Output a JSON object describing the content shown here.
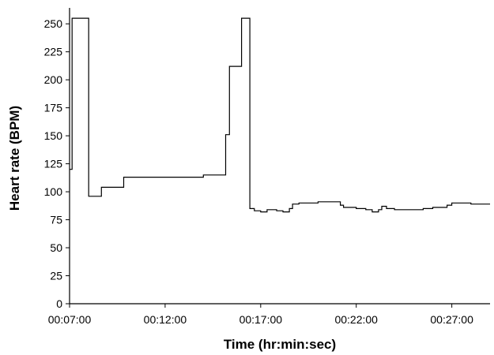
{
  "chart_data": {
    "type": "line",
    "title": "",
    "xlabel": "Time (hr:min:sec)",
    "ylabel": "Heart rate (BPM)",
    "x_ticks": [
      "00:07:00",
      "00:12:00",
      "00:17:00",
      "00:22:00",
      "00:27:00"
    ],
    "y_ticks": [
      0,
      25,
      50,
      75,
      100,
      125,
      150,
      175,
      200,
      225,
      250
    ],
    "xlim": [
      "00:07:00",
      "00:29:00"
    ],
    "ylim": [
      0,
      260
    ],
    "grid": false,
    "line_style": "step",
    "series": [
      {
        "color": "#000000",
        "points": [
          [
            "00:07:00",
            120
          ],
          [
            "00:07:08",
            255
          ],
          [
            "00:08:00",
            96
          ],
          [
            "00:08:40",
            104
          ],
          [
            "00:09:50",
            113
          ],
          [
            "00:14:00",
            115
          ],
          [
            "00:15:10",
            151
          ],
          [
            "00:15:22",
            212
          ],
          [
            "00:16:00",
            255
          ],
          [
            "00:16:26",
            85
          ],
          [
            "00:16:40",
            83
          ],
          [
            "00:17:00",
            82
          ],
          [
            "00:17:20",
            84
          ],
          [
            "00:17:50",
            83
          ],
          [
            "00:18:10",
            82
          ],
          [
            "00:18:30",
            85
          ],
          [
            "00:18:40",
            89
          ],
          [
            "00:19:00",
            90
          ],
          [
            "00:20:00",
            91
          ],
          [
            "00:21:00",
            91
          ],
          [
            "00:21:10",
            88
          ],
          [
            "00:21:20",
            86
          ],
          [
            "00:22:00",
            85
          ],
          [
            "00:22:30",
            84
          ],
          [
            "00:22:50",
            82
          ],
          [
            "00:23:10",
            84
          ],
          [
            "00:23:20",
            87
          ],
          [
            "00:23:35",
            85
          ],
          [
            "00:24:00",
            84
          ],
          [
            "00:25:00",
            84
          ],
          [
            "00:25:30",
            85
          ],
          [
            "00:26:00",
            86
          ],
          [
            "00:26:45",
            88
          ],
          [
            "00:27:00",
            90
          ],
          [
            "00:28:00",
            89
          ],
          [
            "00:29:00",
            89
          ]
        ]
      }
    ]
  }
}
